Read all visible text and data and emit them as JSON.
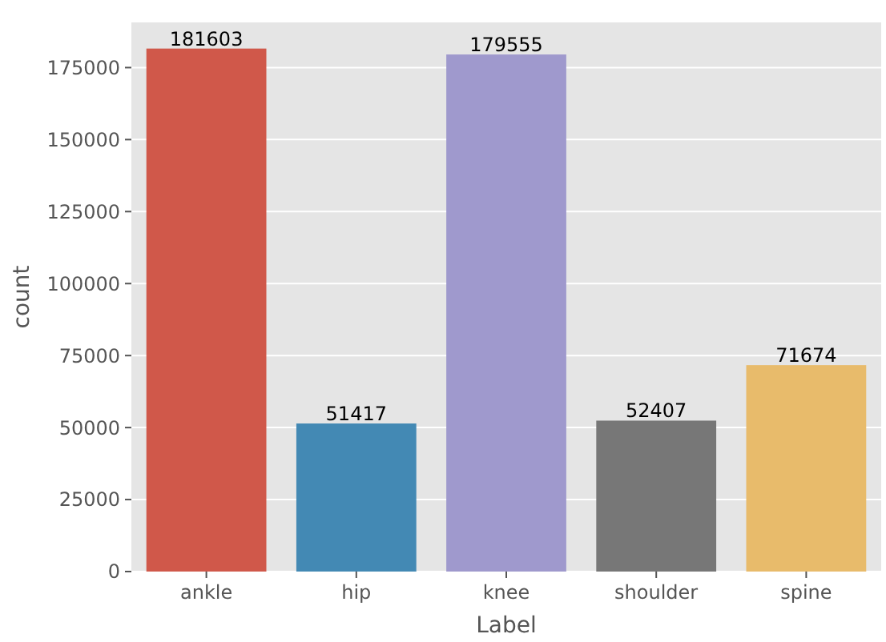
{
  "chart_data": {
    "type": "bar",
    "xlabel": "Label",
    "ylabel": "count",
    "categories": [
      "ankle",
      "hip",
      "knee",
      "shoulder",
      "spine"
    ],
    "values": [
      181603,
      51417,
      179555,
      52407,
      71674
    ],
    "colors": [
      "#d0584a",
      "#4389b4",
      "#9f99cd",
      "#777777",
      "#e8bb6b"
    ],
    "ylim": [
      0,
      190683
    ],
    "yticks": [
      0,
      25000,
      50000,
      75000,
      100000,
      125000,
      150000,
      175000
    ],
    "grid": "y",
    "data_labels": true
  }
}
